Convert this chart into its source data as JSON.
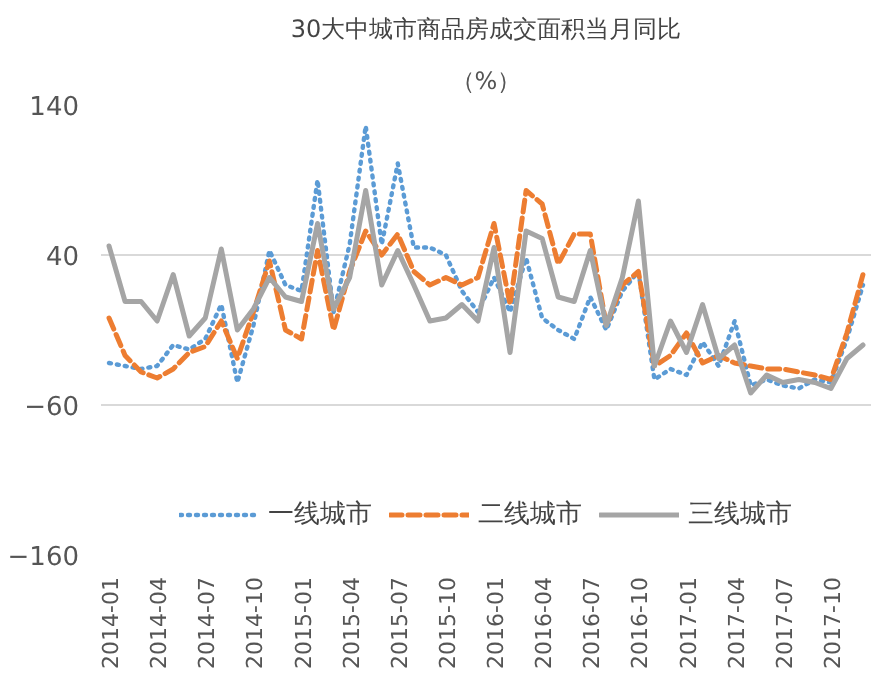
{
  "chart_data": {
    "type": "line",
    "title": "30大中城市商品房成交面积当月同比",
    "subtitle": "（%）",
    "categories": [
      "2014-01",
      null,
      null,
      "2014-04",
      null,
      null,
      "2014-07",
      null,
      null,
      "2014-10",
      null,
      null,
      "2015-01",
      null,
      null,
      "2015-04",
      null,
      null,
      "2015-07",
      null,
      null,
      "2015-10",
      null,
      null,
      "2016-01",
      null,
      null,
      "2016-04",
      null,
      null,
      "2016-07",
      null,
      null,
      "2016-10",
      null,
      null,
      "2017-01",
      null,
      null,
      "2017-04",
      null,
      null,
      "2017-07",
      null,
      null,
      "2017-10",
      null,
      null
    ],
    "series": [
      {
        "name": "一线城市",
        "color": "#5b9bd5",
        "line_style": "dotted",
        "values": [
          -32,
          -34,
          -36,
          -34,
          -20,
          -23,
          -16,
          7,
          -45,
          -7,
          43,
          20,
          16,
          90,
          2,
          47,
          126,
          47,
          101,
          45,
          45,
          40,
          16,
          2,
          25,
          2,
          38,
          -2,
          -10,
          -16,
          12,
          -10,
          16,
          29,
          -43,
          -36,
          -40,
          -18,
          -34,
          -4,
          -47,
          -43,
          -47,
          -49,
          -43,
          -45,
          -16,
          20
        ]
      },
      {
        "name": "二线城市",
        "color": "#ed7d31",
        "line_style": "dashed",
        "values": [
          -2,
          -27,
          -38,
          -42,
          -36,
          -25,
          -21,
          -4,
          -29,
          2,
          36,
          -10,
          -16,
          43,
          -10,
          29,
          56,
          40,
          54,
          29,
          20,
          25,
          20,
          25,
          61,
          7,
          83,
          74,
          34,
          54,
          54,
          -7,
          20,
          29,
          -34,
          -27,
          -12,
          -32,
          -27,
          -32,
          -34,
          -36,
          -36,
          -38,
          -40,
          -43,
          -12,
          27
        ]
      },
      {
        "name": "三线城市",
        "color": "#a5a5a5",
        "line_style": "solid",
        "values": [
          46,
          9,
          9,
          -4,
          27,
          -14,
          -2,
          44,
          -10,
          4,
          25,
          12,
          9,
          61,
          4,
          25,
          83,
          20,
          43,
          20,
          -4,
          -2,
          7,
          -4,
          45,
          -25,
          56,
          51,
          12,
          9,
          43,
          -7,
          25,
          76,
          -34,
          -4,
          -25,
          7,
          -29,
          -20,
          -52,
          -40,
          -45,
          -43,
          -45,
          -49,
          -29,
          -20
        ]
      }
    ],
    "ylim": [
      -160,
      140
    ],
    "yticks": [
      -160,
      -60,
      40,
      140
    ],
    "grid": "y",
    "legend": "bottom",
    "marker": "none"
  }
}
